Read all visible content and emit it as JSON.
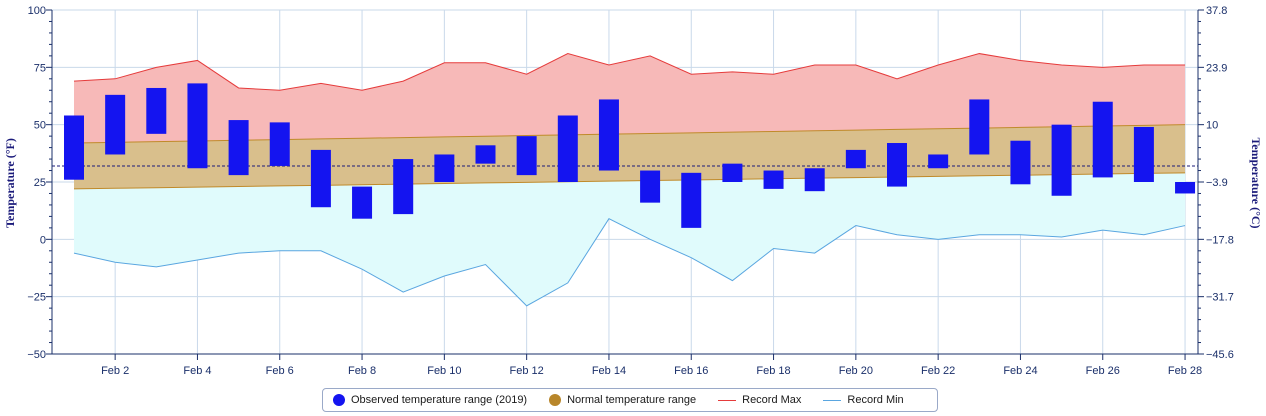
{
  "chart_data": {
    "type": "range-bar-area",
    "title": "",
    "y_left": {
      "label": "Temperature (°F)",
      "range": [
        -50,
        100
      ],
      "ticks": [
        "100",
        "75",
        "50",
        "25",
        "0",
        "−25",
        "−50"
      ],
      "tick_values": [
        100,
        75,
        50,
        25,
        0,
        -25,
        -50
      ]
    },
    "y_right": {
      "label": "Temperature (°C)",
      "ticks": [
        "37.8",
        "23.9",
        "10",
        "−3.9",
        "−17.8",
        "−31.7",
        "−45.6"
      ],
      "tick_values": [
        100,
        75,
        50,
        25,
        0,
        -25,
        -50
      ]
    },
    "x": {
      "days": [
        1,
        2,
        3,
        4,
        5,
        6,
        7,
        8,
        9,
        10,
        11,
        12,
        13,
        14,
        15,
        16,
        17,
        18,
        19,
        20,
        21,
        22,
        23,
        24,
        25,
        26,
        27,
        28
      ],
      "tick_labels": [
        "Feb 2",
        "Feb 4",
        "Feb 6",
        "Feb 8",
        "Feb 10",
        "Feb 12",
        "Feb 14",
        "Feb 16",
        "Feb 18",
        "Feb 20",
        "Feb 22",
        "Feb 24",
        "Feb 26",
        "Feb 28"
      ],
      "tick_days": [
        2,
        4,
        6,
        8,
        10,
        12,
        14,
        16,
        18,
        20,
        22,
        24,
        26,
        28
      ]
    },
    "freezing_line": 32,
    "series": [
      {
        "name": "Observed temperature range (2019)",
        "kind": "range-bar",
        "color": "#1414f0",
        "low": [
          26,
          37,
          46,
          31,
          28,
          32,
          14,
          9,
          11,
          25,
          33,
          28,
          25,
          30,
          16,
          5,
          25,
          22,
          21,
          31,
          23,
          31,
          37,
          24,
          19,
          27,
          25,
          20
        ],
        "high": [
          54,
          63,
          66,
          68,
          52,
          51,
          39,
          23,
          35,
          37,
          41,
          45,
          54,
          61,
          30,
          29,
          33,
          30,
          31,
          39,
          42,
          37,
          61,
          43,
          50,
          60,
          49,
          25
        ]
      },
      {
        "name": "Normal temperature range",
        "kind": "band",
        "color": "#b8862a",
        "low_start": 22,
        "low_end": 29,
        "high_start": 42,
        "high_end": 50
      },
      {
        "name": "Record Max",
        "kind": "line",
        "color": "#e53b3b",
        "values": [
          69,
          70,
          75,
          78,
          66,
          65,
          68,
          65,
          69,
          77,
          77,
          72,
          81,
          76,
          80,
          72,
          73,
          72,
          76,
          76,
          70,
          76,
          81,
          78,
          76,
          75,
          76,
          76
        ]
      },
      {
        "name": "Record Min",
        "kind": "line",
        "color": "#5aa6e0",
        "values": [
          -6,
          -10,
          -12,
          -9,
          -6,
          -5,
          -5,
          -13,
          -23,
          -16,
          -11,
          -29,
          -19,
          9,
          0,
          -8,
          -18,
          -4,
          -6,
          6,
          2,
          0,
          2,
          2,
          1,
          4,
          2,
          6
        ]
      }
    ],
    "grid": true,
    "legend_position": "bottom"
  }
}
